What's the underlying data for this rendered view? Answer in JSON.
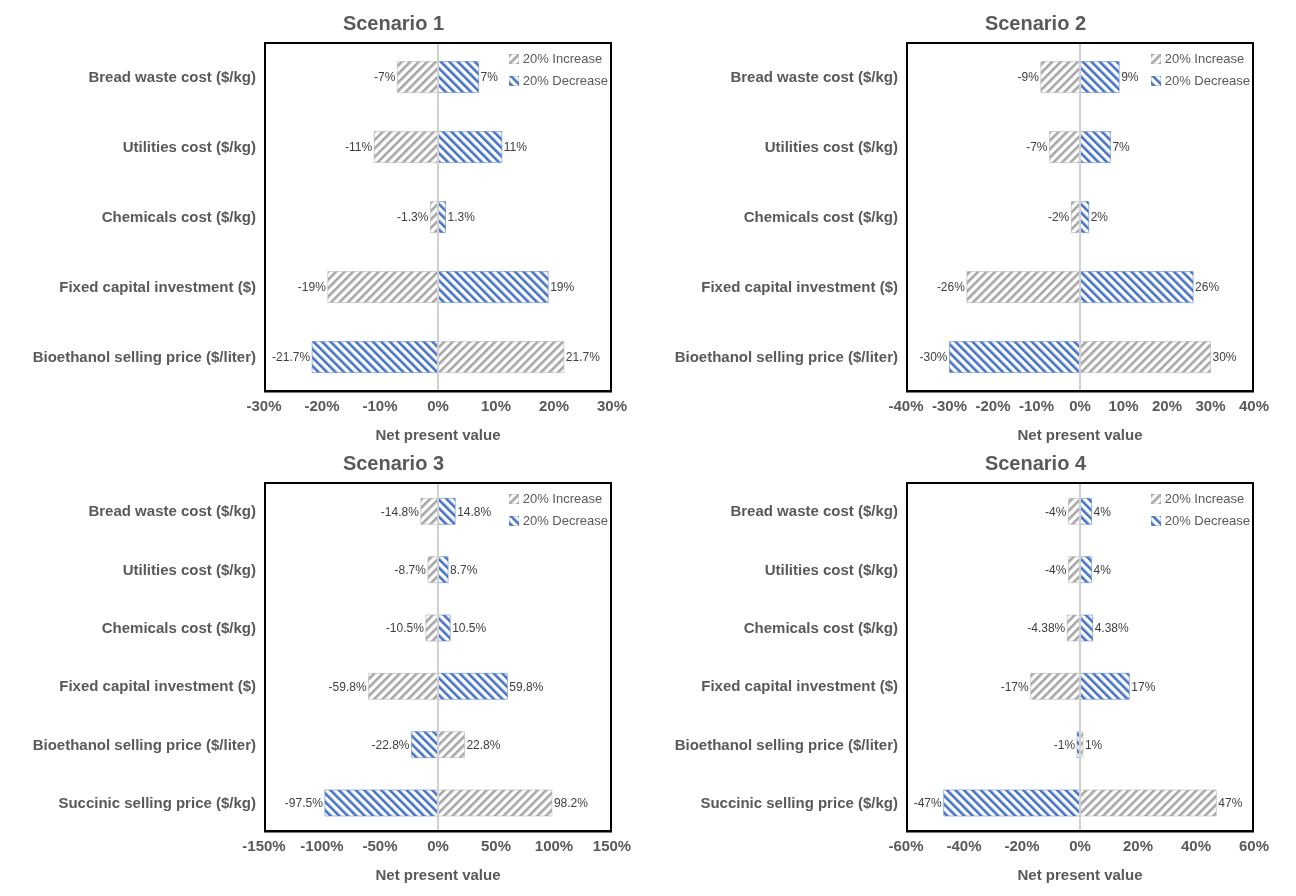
{
  "chart_data": [
    {
      "type": "bar",
      "orientation": "horizontal",
      "stacked": true,
      "title": "Scenario 1",
      "xlabel": "Net present value",
      "legend": "top right",
      "categories": [
        "Bread waste cost ($/kg)",
        "Utilities cost ($/kg)",
        "Chemicals cost ($/kg)",
        "Fixed capital investment ($)",
        "Bioethanol selling price ($/liter)"
      ],
      "series": [
        {
          "name": "20% Increase",
          "color": "#a6a6a6",
          "values": [
            -7,
            -11,
            -1.3,
            -19,
            21.7
          ],
          "value_labels": [
            "-7%",
            "-11%",
            "-1.3%",
            "-19%",
            "21.7%"
          ]
        },
        {
          "name": "20% Decrease",
          "color": "#4472c4",
          "values": [
            7,
            11,
            1.3,
            19,
            -21.7
          ],
          "value_labels": [
            "7%",
            "11%",
            "1.3%",
            "19%",
            "-21.7%"
          ]
        }
      ],
      "xlim": [
        -30,
        30
      ],
      "xticks": [
        {
          "value": -30,
          "label": "-30%"
        },
        {
          "value": -20,
          "label": "-20%"
        },
        {
          "value": -10,
          "label": "-10%"
        },
        {
          "value": 0,
          "label": "0%"
        },
        {
          "value": 10,
          "label": "10%"
        },
        {
          "value": 20,
          "label": "20%"
        },
        {
          "value": 30,
          "label": "30%"
        }
      ],
      "ref_lines": [
        {
          "axis": "x",
          "value": 0,
          "color": "#d0d0d0"
        }
      ]
    },
    {
      "type": "bar",
      "orientation": "horizontal",
      "stacked": true,
      "title": "Scenario 2",
      "xlabel": "Net present value",
      "legend": "top right",
      "categories": [
        "Bread waste cost ($/kg)",
        "Utilities cost ($/kg)",
        "Chemicals cost ($/kg)",
        "Fixed capital investment ($)",
        "Bioethanol selling price ($/liter)"
      ],
      "series": [
        {
          "name": "20% Increase",
          "color": "#a6a6a6",
          "values": [
            -9,
            -7,
            -2,
            -26,
            30
          ],
          "value_labels": [
            "-9%",
            "-7%",
            "-2%",
            "-26%",
            "30%"
          ]
        },
        {
          "name": "20% Decrease",
          "color": "#4472c4",
          "values": [
            9,
            7,
            2,
            26,
            -30
          ],
          "value_labels": [
            "9%",
            "7%",
            "2%",
            "26%",
            "-30%"
          ]
        }
      ],
      "xlim": [
        -40,
        40
      ],
      "xticks": [
        {
          "value": -40,
          "label": "-40%"
        },
        {
          "value": -30,
          "label": "-30%"
        },
        {
          "value": -20,
          "label": "-20%"
        },
        {
          "value": -10,
          "label": "-10%"
        },
        {
          "value": 0,
          "label": "0%"
        },
        {
          "value": 10,
          "label": "10%"
        },
        {
          "value": 20,
          "label": "20%"
        },
        {
          "value": 30,
          "label": "30%"
        },
        {
          "value": 40,
          "label": "40%"
        }
      ],
      "ref_lines": [
        {
          "axis": "x",
          "value": 0,
          "color": "#d0d0d0"
        }
      ]
    },
    {
      "type": "bar",
      "orientation": "horizontal",
      "stacked": true,
      "title": "Scenario 3",
      "xlabel": "Net present value",
      "legend": "top right",
      "categories": [
        "Bread waste cost ($/kg)",
        "Utilities cost ($/kg)",
        "Chemicals cost ($/kg)",
        "Fixed capital investment ($)",
        "Bioethanol selling price ($/liter)",
        "Succinic selling price ($/kg)"
      ],
      "series": [
        {
          "name": "20% Increase",
          "color": "#a6a6a6",
          "values": [
            -14.8,
            -8.7,
            -10.5,
            -59.8,
            22.8,
            98.2
          ],
          "value_labels": [
            "-14.8%",
            "-8.7%",
            "-10.5%",
            "-59.8%",
            "22.8%",
            "98.2%"
          ]
        },
        {
          "name": "20% Decrease",
          "color": "#4472c4",
          "values": [
            14.8,
            8.7,
            10.5,
            59.8,
            -22.8,
            -97.5
          ],
          "value_labels": [
            "14.8%",
            "8.7%",
            "10.5%",
            "59.8%",
            "-22.8%",
            "-97.5%"
          ]
        }
      ],
      "xlim": [
        -150,
        150
      ],
      "xticks": [
        {
          "value": -150,
          "label": "-150%"
        },
        {
          "value": -100,
          "label": "-100%"
        },
        {
          "value": -50,
          "label": "-50%"
        },
        {
          "value": 0,
          "label": "0%"
        },
        {
          "value": 50,
          "label": "50%"
        },
        {
          "value": 100,
          "label": "100%"
        },
        {
          "value": 150,
          "label": "150%"
        }
      ],
      "ref_lines": [
        {
          "axis": "x",
          "value": 0,
          "color": "#d0d0d0"
        }
      ]
    },
    {
      "type": "bar",
      "orientation": "horizontal",
      "stacked": true,
      "title": "Scenario 4",
      "xlabel": "Net present value",
      "legend": "top right",
      "categories": [
        "Bread waste cost ($/kg)",
        "Utilities cost ($/kg)",
        "Chemicals cost ($/kg)",
        "Fixed capital investment ($)",
        "Bioethanol selling price ($/liter)",
        "Succinic selling price ($/kg)"
      ],
      "series": [
        {
          "name": "20% Increase",
          "color": "#a6a6a6",
          "values": [
            -4,
            -4,
            -4.38,
            -17,
            1,
            47
          ],
          "value_labels": [
            "-4%",
            "-4%",
            "-4.38%",
            "-17%",
            "1%",
            "47%"
          ]
        },
        {
          "name": "20% Decrease",
          "color": "#4472c4",
          "values": [
            4,
            4,
            4.38,
            17,
            -1,
            -47
          ],
          "value_labels": [
            "4%",
            "4%",
            "4.38%",
            "17%",
            "-1%",
            "-47%"
          ]
        }
      ],
      "xlim": [
        -60,
        60
      ],
      "xticks": [
        {
          "value": -60,
          "label": "-60%"
        },
        {
          "value": -40,
          "label": "-40%"
        },
        {
          "value": -20,
          "label": "-20%"
        },
        {
          "value": 0,
          "label": "0%"
        },
        {
          "value": 20,
          "label": "20%"
        },
        {
          "value": 40,
          "label": "40%"
        },
        {
          "value": 60,
          "label": "60%"
        }
      ],
      "ref_lines": [
        {
          "axis": "x",
          "value": 0,
          "color": "#d0d0d0"
        }
      ]
    }
  ]
}
